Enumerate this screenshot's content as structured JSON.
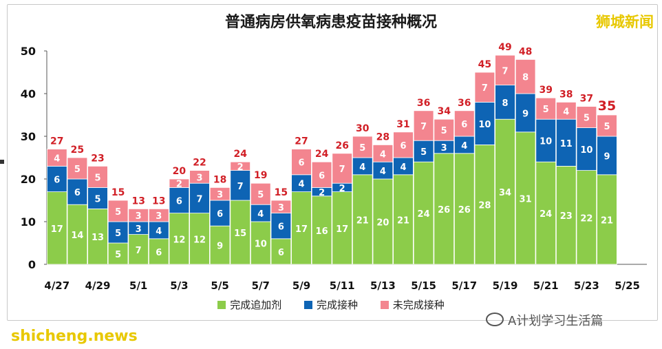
{
  "header": {
    "title": "普通病房供氧病患疫苗接种概况",
    "brand": "狮城新闻"
  },
  "footer": {
    "wechat_label": "A计划学习生活篇",
    "watermark": "shicheng.news"
  },
  "colors": {
    "booster": "#8ccc4a",
    "completed": "#0e64b4",
    "incomplete": "#f3858f",
    "total_label": "#d11f26"
  },
  "chart_data": {
    "type": "bar",
    "stacked": true,
    "title": "普通病房供氧病患疫苗接种概况",
    "categories": [
      "4/27",
      "4/28",
      "4/29",
      "4/30",
      "5/1",
      "5/2",
      "5/3",
      "5/4",
      "5/5",
      "5/6",
      "5/7",
      "5/8",
      "5/9",
      "5/10",
      "5/11",
      "5/12",
      "5/13",
      "5/14",
      "5/15",
      "5/16",
      "5/17",
      "5/18",
      "5/19",
      "5/20",
      "5/21",
      "5/22",
      "5/23",
      "5/24"
    ],
    "x_tick_labels": [
      "4/27",
      "4/29",
      "5/1",
      "5/3",
      "5/5",
      "5/7",
      "5/9",
      "5/11",
      "5/13",
      "5/15",
      "5/17",
      "5/19",
      "5/21",
      "5/23",
      "5/25"
    ],
    "series": [
      {
        "name": "完成追加剂",
        "values": [
          17,
          14,
          13,
          5,
          7,
          6,
          12,
          12,
          9,
          15,
          10,
          6,
          17,
          16,
          17,
          21,
          20,
          21,
          24,
          26,
          26,
          28,
          34,
          31,
          24,
          23,
          22,
          21
        ]
      },
      {
        "name": "完成接种",
        "values": [
          6,
          6,
          5,
          5,
          3,
          4,
          6,
          7,
          6,
          7,
          4,
          6,
          4,
          2,
          2,
          4,
          4,
          4,
          5,
          3,
          4,
          10,
          8,
          9,
          10,
          11,
          10,
          9
        ]
      },
      {
        "name": "未完成接种",
        "values": [
          4,
          5,
          5,
          5,
          3,
          3,
          2,
          3,
          3,
          2,
          5,
          3,
          6,
          6,
          7,
          5,
          4,
          6,
          7,
          5,
          6,
          7,
          7,
          8,
          5,
          4,
          5,
          5
        ]
      }
    ],
    "totals": [
      27,
      25,
      23,
      15,
      13,
      13,
      20,
      22,
      18,
      24,
      19,
      15,
      27,
      24,
      26,
      30,
      28,
      31,
      36,
      34,
      36,
      45,
      49,
      48,
      39,
      38,
      37,
      35
    ],
    "xlabel": "",
    "ylabel": "",
    "ylim": [
      0,
      50
    ],
    "y_ticks": [
      0,
      10,
      20,
      30,
      40,
      50
    ],
    "grid": false,
    "legend_position": "bottom"
  }
}
